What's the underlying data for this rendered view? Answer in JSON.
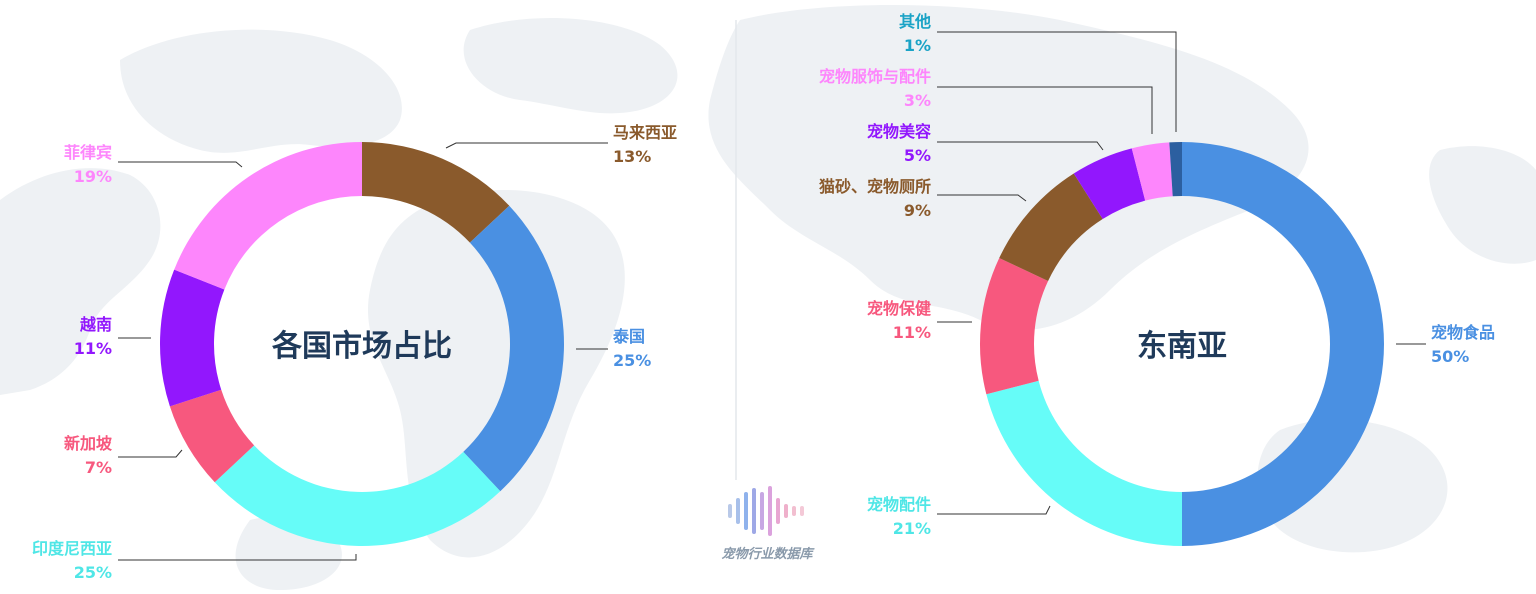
{
  "chart_data": [
    {
      "type": "pie",
      "variant": "donut",
      "title": "各国市场占比",
      "categories": [
        "马来西亚",
        "泰国",
        "印度尼西亚",
        "新加坡",
        "越南",
        "菲律宾"
      ],
      "values": [
        13,
        25,
        25,
        7,
        11,
        19
      ],
      "value_labels": [
        "13%",
        "25%",
        "25%",
        "7%",
        "11%",
        "19%"
      ],
      "colors": [
        "#8a5a2c",
        "#4a90e2",
        "#66fcf8",
        "#f7587e",
        "#9217fd",
        "#fd86fc"
      ]
    },
    {
      "type": "pie",
      "variant": "donut",
      "title": "东南亚",
      "categories": [
        "宠物食品",
        "宠物配件",
        "宠物保健",
        "猫砂、宠物厕所",
        "宠物美容",
        "宠物服饰与配件",
        "其他"
      ],
      "values": [
        50,
        21,
        11,
        9,
        5,
        3,
        1
      ],
      "value_labels": [
        "50%",
        "21%",
        "11%",
        "9%",
        "5%",
        "3%",
        "1%"
      ],
      "colors": [
        "#4a90e2",
        "#66fcf8",
        "#f7587e",
        "#8a5a2c",
        "#9217fd",
        "#fd86fc",
        "#2c5fa0"
      ]
    }
  ],
  "watermark": {
    "text": "宠物行业数据库",
    "icon": "sound-wave-logo-icon"
  },
  "colors": {
    "title": "#1f3a5a",
    "leader_line": "#333333",
    "divider": "#e3e7ec",
    "map": "#eef1f4"
  }
}
